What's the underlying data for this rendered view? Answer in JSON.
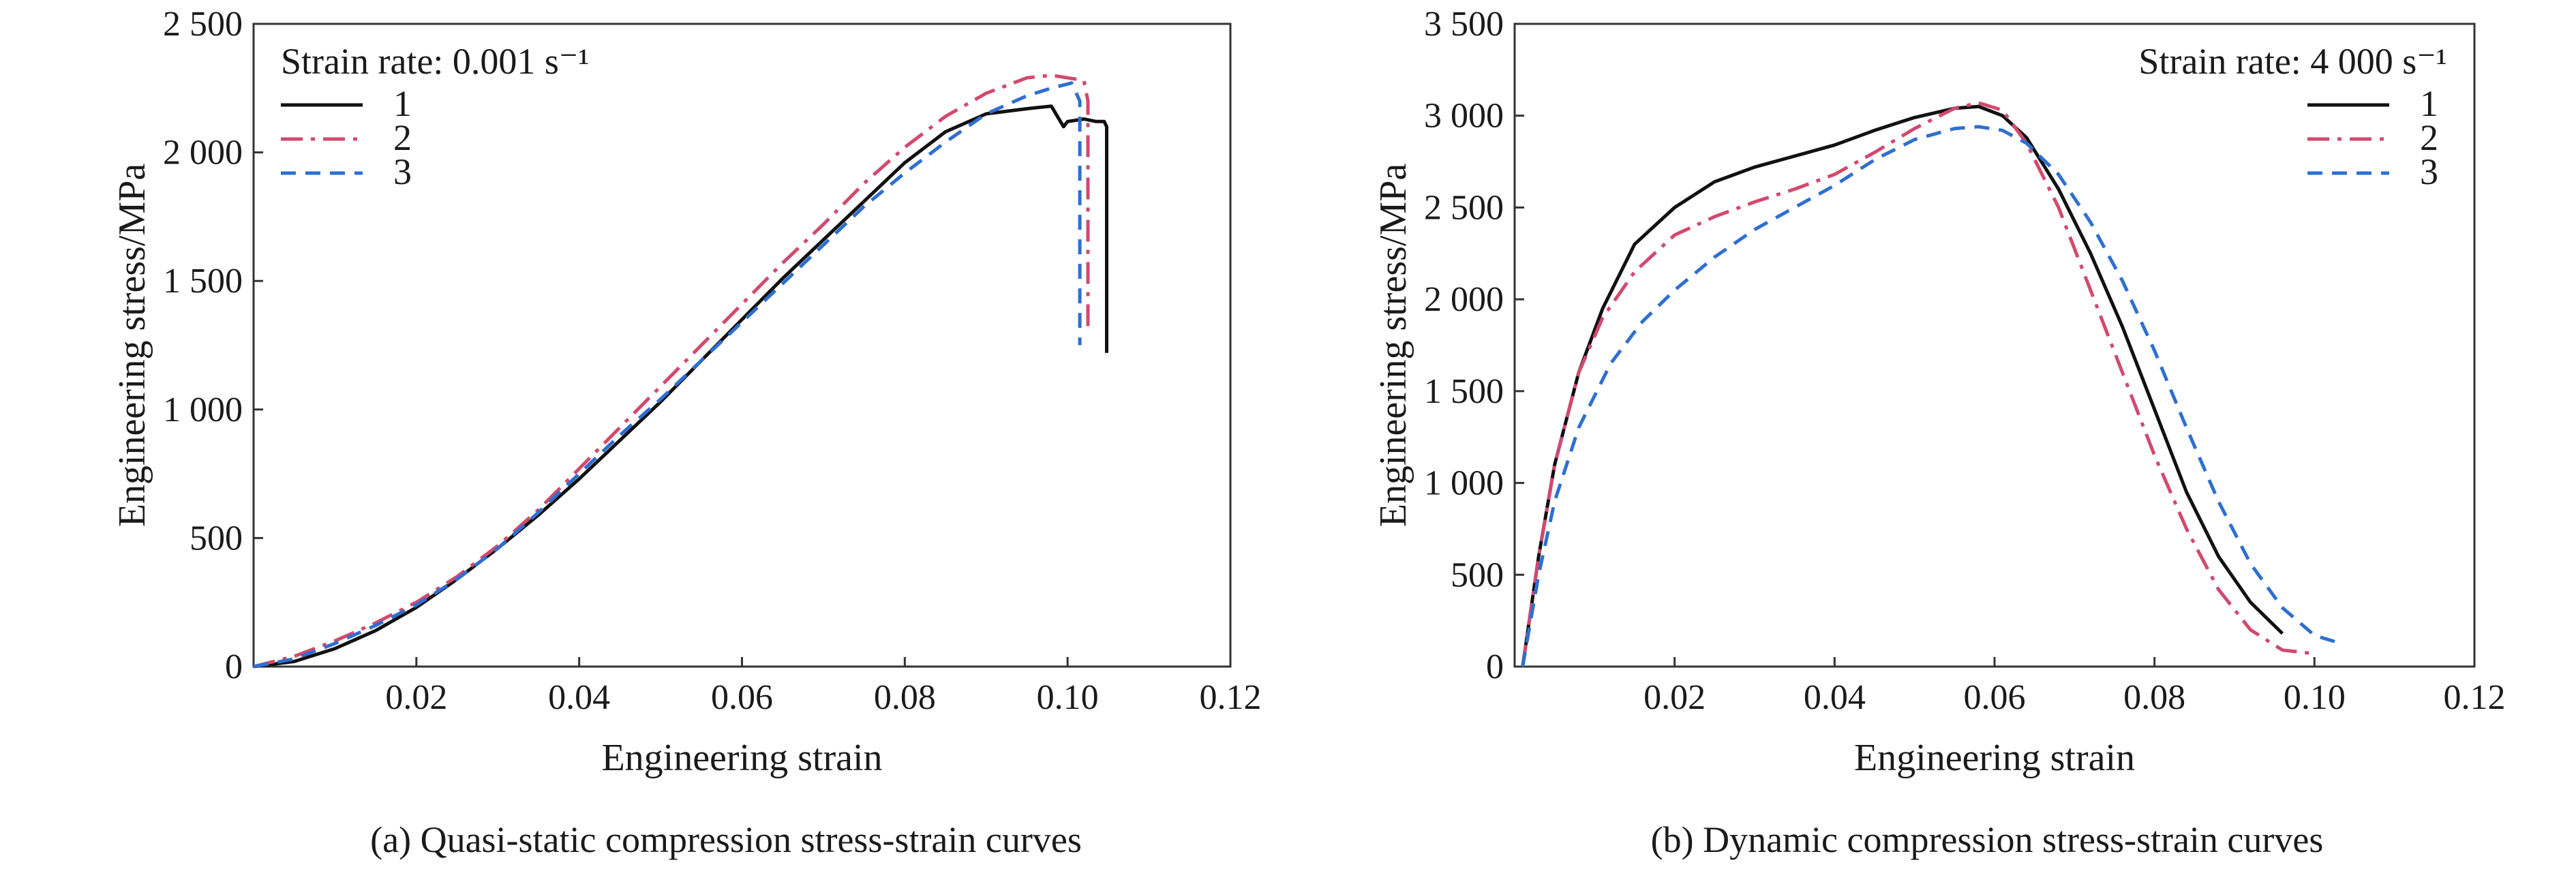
{
  "figure": {
    "charts": [
      {
        "caption": "(a) Quasi-static compression stress-strain curves",
        "legend_title": "Strain rate: 0.001 s⁻¹"
      },
      {
        "caption": "(b) Dynamic compression stress-strain curves",
        "legend_title": "Strain rate: 4 000 s⁻¹"
      }
    ]
  },
  "chart_data": [
    {
      "type": "line",
      "title": "",
      "xlabel": "Engineering strain",
      "ylabel": "Engineering stress/MPa",
      "xlim": [
        0,
        0.12
      ],
      "ylim": [
        0,
        2500
      ],
      "xticks": [
        0.02,
        0.04,
        0.06,
        0.08,
        0.1,
        0.12
      ],
      "xtick_labels": [
        "0.02",
        "0.04",
        "0.06",
        "0.08",
        "0.10",
        "0.12"
      ],
      "yticks": [
        0,
        500,
        1000,
        1500,
        2000,
        2500
      ],
      "ytick_labels": [
        "0",
        "500",
        "1 000",
        "1 500",
        "2 000",
        "2 500"
      ],
      "grid": false,
      "legend_position": "top-left",
      "series": [
        {
          "name": "1",
          "color": "#111111",
          "dash": "solid",
          "x": [
            0.0,
            0.005,
            0.01,
            0.015,
            0.02,
            0.025,
            0.03,
            0.035,
            0.04,
            0.045,
            0.05,
            0.055,
            0.06,
            0.065,
            0.07,
            0.075,
            0.08,
            0.085,
            0.09,
            0.095,
            0.098,
            0.0995,
            0.1,
            0.102,
            0.1035,
            0.1045,
            0.1048,
            0.1048
          ],
          "y": [
            0,
            20,
            70,
            140,
            230,
            340,
            460,
            590,
            730,
            880,
            1030,
            1190,
            1350,
            1510,
            1660,
            1810,
            1960,
            2080,
            2150,
            2170,
            2180,
            2100,
            2120,
            2130,
            2120,
            2120,
            2100,
            1220
          ]
        },
        {
          "name": "2",
          "color": "#d14a6e",
          "dash": "dashdot",
          "x": [
            0.0,
            0.005,
            0.01,
            0.015,
            0.02,
            0.025,
            0.03,
            0.035,
            0.04,
            0.045,
            0.05,
            0.055,
            0.06,
            0.065,
            0.07,
            0.075,
            0.08,
            0.085,
            0.09,
            0.095,
            0.098,
            0.1,
            0.102,
            0.1025,
            0.1025
          ],
          "y": [
            0,
            40,
            100,
            170,
            250,
            350,
            470,
            610,
            770,
            930,
            1090,
            1250,
            1410,
            1570,
            1720,
            1880,
            2020,
            2140,
            2230,
            2290,
            2300,
            2290,
            2280,
            2200,
            1300
          ]
        },
        {
          "name": "3",
          "color": "#2e6fd1",
          "dash": "dash",
          "x": [
            0.0,
            0.005,
            0.01,
            0.015,
            0.02,
            0.025,
            0.03,
            0.035,
            0.04,
            0.045,
            0.05,
            0.055,
            0.06,
            0.065,
            0.07,
            0.075,
            0.08,
            0.085,
            0.09,
            0.095,
            0.098,
            0.1005,
            0.1015,
            0.1015
          ],
          "y": [
            0,
            30,
            90,
            160,
            240,
            340,
            460,
            600,
            750,
            900,
            1040,
            1190,
            1340,
            1490,
            1640,
            1790,
            1920,
            2040,
            2150,
            2220,
            2250,
            2270,
            2200,
            1250
          ]
        }
      ]
    },
    {
      "type": "line",
      "title": "",
      "xlabel": "Engineering strain",
      "ylabel": "Engineering stress/MPa",
      "xlim": [
        0,
        0.12
      ],
      "ylim": [
        0,
        3500
      ],
      "xticks": [
        0.02,
        0.04,
        0.06,
        0.08,
        0.1,
        0.12
      ],
      "xtick_labels": [
        "0.02",
        "0.04",
        "0.06",
        "0.08",
        "0.10",
        "0.12"
      ],
      "yticks": [
        0,
        500,
        1000,
        1500,
        2000,
        2500,
        3000,
        3500
      ],
      "ytick_labels": [
        "0",
        "500",
        "1 000",
        "1 500",
        "2 000",
        "2 500",
        "3 000",
        "3 500"
      ],
      "grid": false,
      "legend_position": "top-right",
      "series": [
        {
          "name": "1",
          "color": "#111111",
          "dash": "solid",
          "x": [
            0.001,
            0.003,
            0.005,
            0.008,
            0.011,
            0.015,
            0.02,
            0.025,
            0.03,
            0.035,
            0.04,
            0.045,
            0.05,
            0.055,
            0.058,
            0.061,
            0.064,
            0.068,
            0.072,
            0.076,
            0.08,
            0.084,
            0.088,
            0.092,
            0.096
          ],
          "y": [
            0,
            600,
            1100,
            1600,
            1950,
            2300,
            2500,
            2640,
            2720,
            2780,
            2840,
            2920,
            2990,
            3040,
            3050,
            3000,
            2880,
            2600,
            2250,
            1850,
            1400,
            950,
            600,
            350,
            180
          ]
        },
        {
          "name": "2",
          "color": "#d14a6e",
          "dash": "dashdot",
          "x": [
            0.001,
            0.003,
            0.005,
            0.008,
            0.011,
            0.015,
            0.02,
            0.025,
            0.03,
            0.035,
            0.04,
            0.045,
            0.05,
            0.055,
            0.058,
            0.061,
            0.064,
            0.068,
            0.072,
            0.076,
            0.08,
            0.084,
            0.088,
            0.092,
            0.096,
            0.1
          ],
          "y": [
            0,
            600,
            1100,
            1600,
            1900,
            2150,
            2350,
            2450,
            2530,
            2600,
            2680,
            2800,
            2930,
            3040,
            3070,
            3030,
            2850,
            2500,
            2050,
            1600,
            1150,
            750,
            420,
            200,
            90,
            70
          ]
        },
        {
          "name": "3",
          "color": "#2e6fd1",
          "dash": "dash",
          "x": [
            0.001,
            0.003,
            0.005,
            0.008,
            0.012,
            0.016,
            0.02,
            0.025,
            0.03,
            0.035,
            0.04,
            0.045,
            0.05,
            0.055,
            0.058,
            0.061,
            0.064,
            0.068,
            0.072,
            0.076,
            0.08,
            0.084,
            0.088,
            0.092,
            0.096,
            0.1,
            0.103
          ],
          "y": [
            0,
            500,
            900,
            1300,
            1650,
            1880,
            2050,
            2230,
            2380,
            2500,
            2620,
            2760,
            2870,
            2930,
            2940,
            2920,
            2850,
            2680,
            2420,
            2100,
            1720,
            1300,
            900,
            560,
            320,
            170,
            130
          ]
        }
      ]
    }
  ]
}
